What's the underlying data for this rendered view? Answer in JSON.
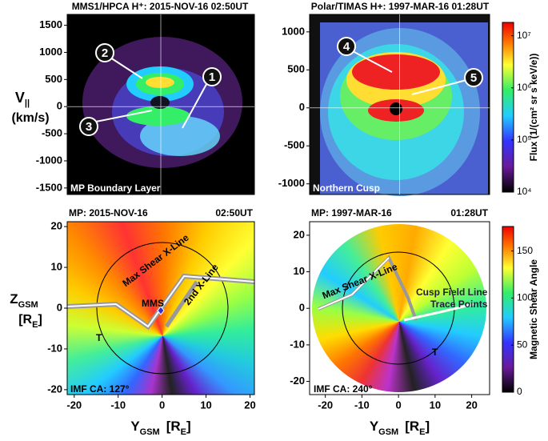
{
  "chart_data": [
    {
      "type": "heatmap",
      "title": "MMS1/HPCA H⁺: 2015-NOV-16  02:50UT",
      "ylabel": [
        "V",
        "||",
        "(km/s)"
      ],
      "ylim": [
        -1620,
        1700
      ],
      "yticks": [
        -1500,
        -1000,
        -500,
        0,
        500,
        1000,
        1500
      ],
      "annotations": [
        "1",
        "2",
        "3",
        "MP Boundary Layer"
      ]
    },
    {
      "type": "heatmap",
      "title": "Polar/TIMAS H+: 1997-MAR-16 01:28UT",
      "ylim": [
        -1140,
        1230
      ],
      "yticks": [
        -1000,
        -500,
        0,
        500,
        1000
      ],
      "annotations": [
        "4",
        "5",
        "Northern Cusp"
      ],
      "colorbar": {
        "label": "Flux (1/(cm² sr s keV/e))",
        "log": true,
        "lim": [
          10000,
          18000000
        ],
        "ticks": [
          {
            "value": 10000,
            "label": "10⁴"
          },
          {
            "value": 100000,
            "label": "10⁵"
          },
          {
            "value": 1000000,
            "label": "10⁶"
          },
          {
            "value": 10000000,
            "label": "10⁷"
          }
        ]
      }
    },
    {
      "type": "shear-map",
      "title_left": "MP: 2015-NOV-16",
      "title_right": "02:50UT",
      "xlabel": [
        "Y",
        "GSM",
        "[R",
        "E",
        "]"
      ],
      "ylabel": [
        "Z",
        "GSM",
        "[R",
        "E",
        "]"
      ],
      "xlim": [
        -21.6,
        21
      ],
      "xticks": [
        -20,
        -10,
        0,
        10,
        20
      ],
      "ylim": [
        -21.2,
        21.2
      ],
      "yticks": [
        -20,
        -10,
        0,
        10,
        20
      ],
      "annotations": [
        "Max Shear X-Line",
        "MMS",
        "2nd X-Line",
        "T",
        "IMF CA: 127°"
      ]
    },
    {
      "type": "shear-map",
      "title_left": "MP: 1997-MAR-16",
      "title_right": "01:28UT",
      "xlabel": [
        "Y",
        "GSM",
        "[R",
        "E",
        "]"
      ],
      "xlim": [
        -24.3,
        24.9
      ],
      "xticks": [
        -20,
        -10,
        0,
        10,
        20
      ],
      "ylim": [
        -23.6,
        23.7
      ],
      "yticks": [
        -20,
        -10,
        0,
        10,
        20
      ],
      "annotations": [
        "Max Shear X-Line",
        "Cusp Field Line",
        "Trace Points",
        "T",
        "IMF CA: 240°"
      ],
      "colorbar": {
        "label": "Magnetic Shear Angle",
        "lim": [
          0,
          176
        ],
        "ticks": [
          0,
          50,
          100,
          150
        ]
      }
    }
  ]
}
